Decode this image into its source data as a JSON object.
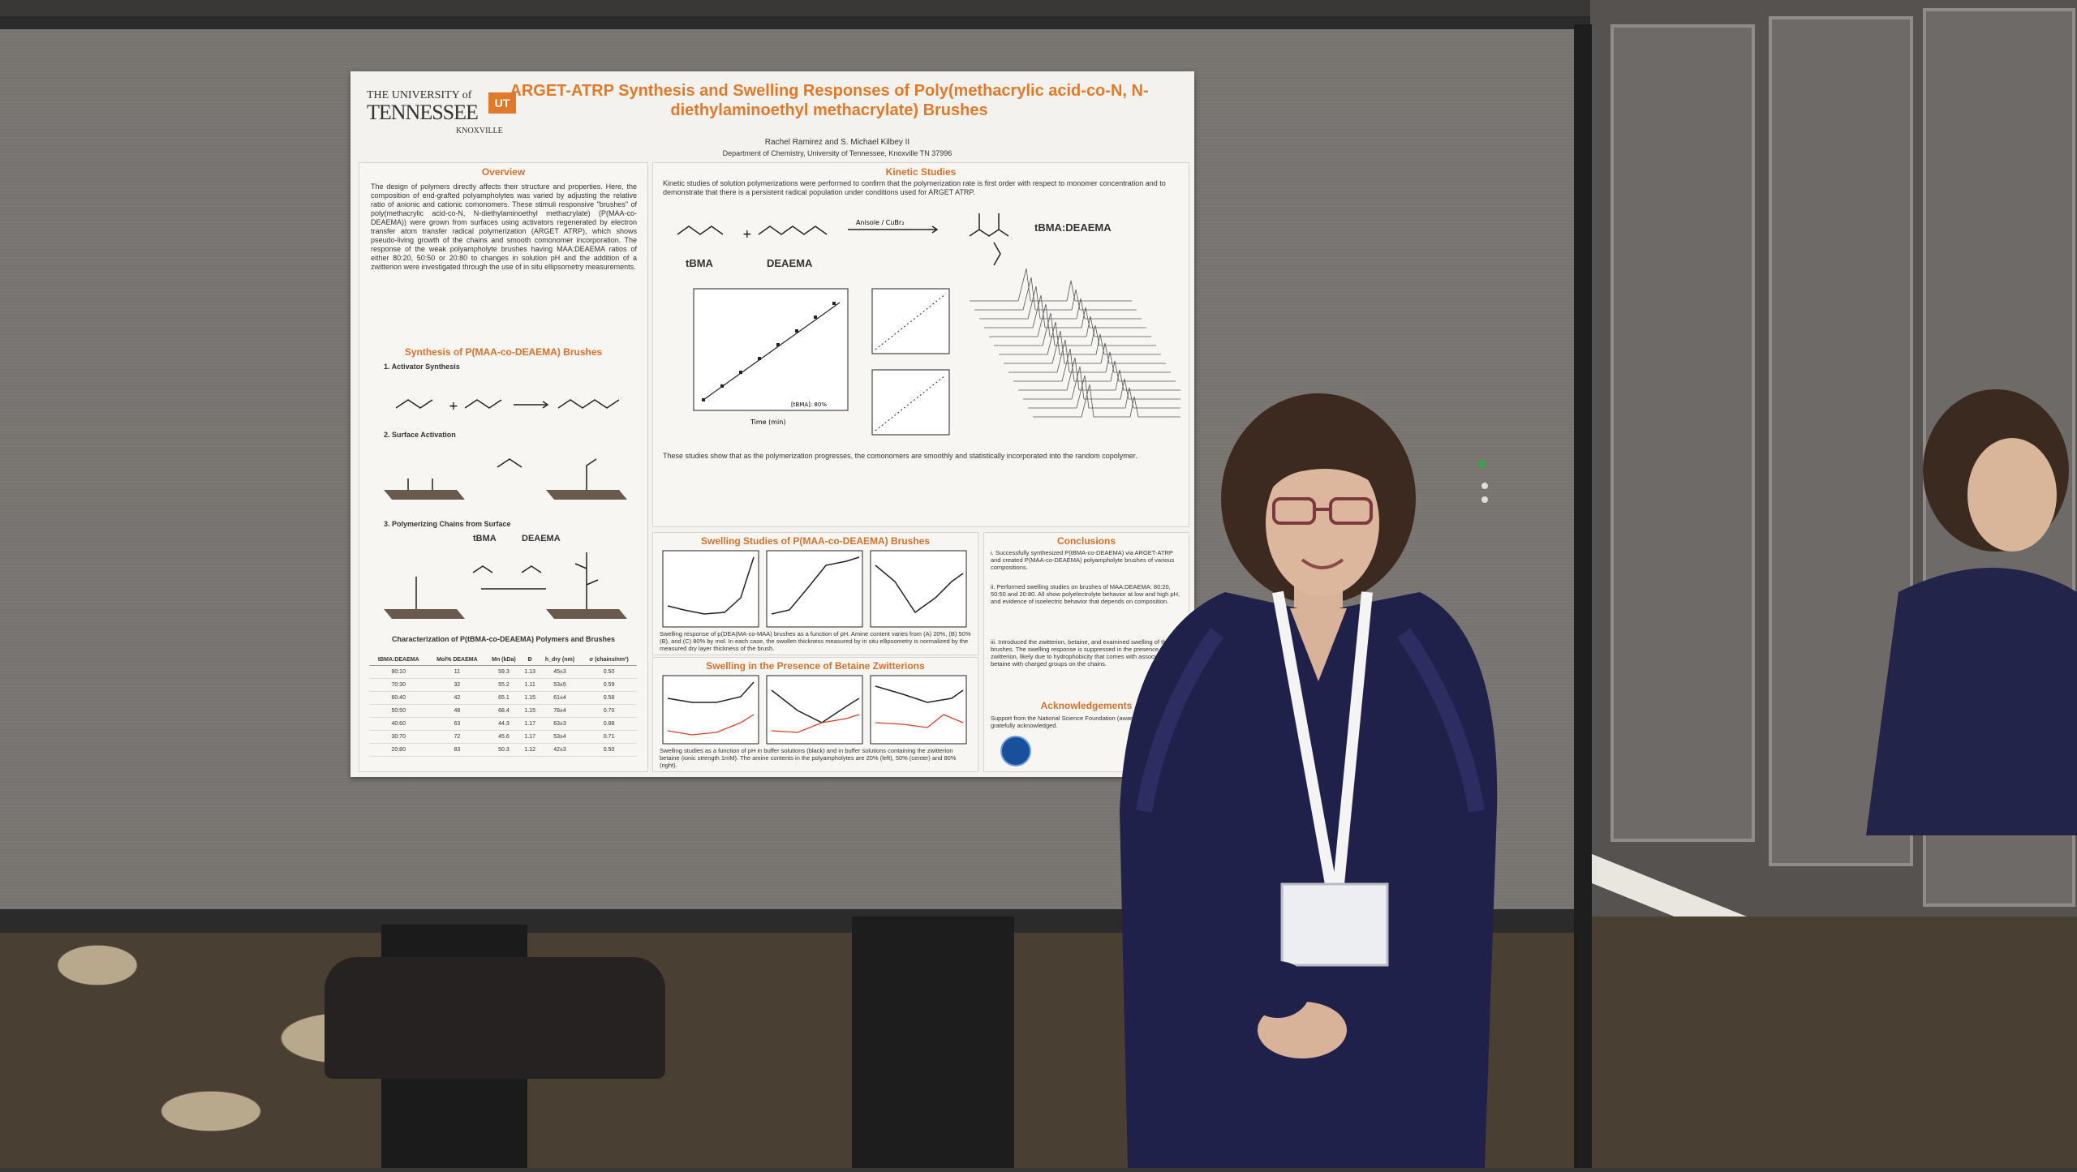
{
  "poster": {
    "title": "ARGET-ATRP Synthesis and Swelling Responses of Poly(methacrylic acid-co-N, N-diethylaminoethyl methacrylate) Brushes",
    "authors": "Rachel Ramirez and S. Michael Kilbey II",
    "department": "Department of Chemistry, University of Tennessee, Knoxville TN 37996",
    "logo": {
      "line1": "THE UNIVERSITY of",
      "line2": "TENNESSEE",
      "line3": "KNOXVILLE",
      "mark": "UT"
    },
    "sections": {
      "overview": {
        "heading": "Overview",
        "text": "The design of polymers directly affects their structure and properties. Here, the composition of end-grafted polyampholytes was varied by adjusting the relative ratio of anionic and cationic comonomers. These stimuli responsive \"brushes\" of poly(methacrylic acid-co-N, N-diethylaminoethyl methacrylate) (P(MAA-co-DEAEMA)) were grown from surfaces using activators regenerated by electron transfer atom transfer radical polymerization (ARGET ATRP), which shows pseudo-living growth of the chains and smooth comonomer incorporation. The response of the weak polyampholyte brushes having MAA:DEAEMA ratios of either 80:20, 50:50 or 20:80 to changes in solution pH and the addition of a zwitterion were investigated through the use of in situ ellipsometry measurements."
      },
      "synthesis": {
        "heading": "Synthesis of P(MAA-co-DEAEMA) Brushes",
        "step1": "1. Activator Synthesis",
        "step2": "2. Surface Activation",
        "step3": "3. Polymerizing Chains from Surface",
        "monomer_a": "tBMA",
        "monomer_b": "DEAEMA",
        "table_heading": "Characterization of P(tBMA-co-DEAEMA) Polymers and Brushes"
      },
      "kinetic": {
        "heading": "Kinetic Studies",
        "text": "Kinetic studies of solution polymerizations were performed to confirm that the polymerization rate is first order with respect to monomer concentration and to demonstrate that there is a persistent radical population under conditions used for ARGET ATRP.",
        "label_a": "tBMA",
        "label_b": "DEAEMA",
        "label_product": "tBMA:DEAEMA",
        "conditions": "Anisole / CuBr₂",
        "axis_time": "Time (min)",
        "legend": "[tBMA]: 80%",
        "footer": "These studies show that as the polymerization progresses, the comonomers are smoothly and statistically incorporated into the random copolymer."
      },
      "swelling": {
        "heading": "Swelling Studies of P(MAA-co-DEAEMA) Brushes",
        "caption": "Swelling response of p(DEA(MA-co-MAA) brushes as a function of pH. Amine content varies from (A) 20%, (B) 50%(B), and (C) 80% by mol. In each case, the swollen thickness measured by in situ ellipsometry is normalized by the measured dry layer thickness of the brush."
      },
      "betaine": {
        "heading": "Swelling in the Presence of Betaine Zwitterions",
        "caption": "Swelling studies as a function of pH in buffer solutions (black) and in buffer solutions containing the zwitterion betaine (ionic strength 1mM). The amine contents in the polyampholytes are 20% (left), 50% (center) and 80% (right)."
      },
      "conclusions": {
        "heading": "Conclusions",
        "items": [
          "i. Successfully synthesized P(tBMA-co-DEAEMA) via ARGET-ATRP and created P(MAA-co-DEAEMA) polyampholyte brushes of various compositions.",
          "ii. Performed swelling studies on brushes of MAA:DEAEMA: 80:20, 50:50 and 20:80. All show polyelectrolyte behavior at low and high pH, and evidence of isoelectric behavior that depends on composition.",
          "iii. Introduced the zwitterion, betaine, and examined swelling of the brushes. The swelling response is suppressed in the presence of the zwitterion, likely due to hydrophobicity that comes with association of betaine with charged groups on the chains."
        ]
      },
      "acknowledgements": {
        "heading": "Acknowledgements",
        "text": "Support from the National Science Foundation (award 1512221) is gratefully acknowledged."
      }
    },
    "table": {
      "headers": [
        "tBMA:DEAEMA",
        "Mol% DEAEMA",
        "Mn (kDa)",
        "Đ",
        "h_dry (nm)",
        "σ (chains/nm²)"
      ],
      "rows": [
        [
          "90:10",
          "11",
          "59.3",
          "1.13",
          "45±3",
          "0.50"
        ],
        [
          "70:30",
          "32",
          "55.2",
          "1.11",
          "53±5",
          "0.59"
        ],
        [
          "60:40",
          "42",
          "65.1",
          "1.15",
          "61±4",
          "0.58"
        ],
        [
          "50:50",
          "48",
          "68.4",
          "1.15",
          "78±4",
          "0.70"
        ],
        [
          "40:60",
          "63",
          "44.3",
          "1.17",
          "63±3",
          "0.88"
        ],
        [
          "30:70",
          "72",
          "45.6",
          "1.17",
          "53±4",
          "0.71"
        ],
        [
          "20:80",
          "83",
          "50.3",
          "1.12",
          "42±3",
          "0.50"
        ]
      ]
    }
  },
  "badge": {
    "lanyard_color": "#ffffff"
  }
}
